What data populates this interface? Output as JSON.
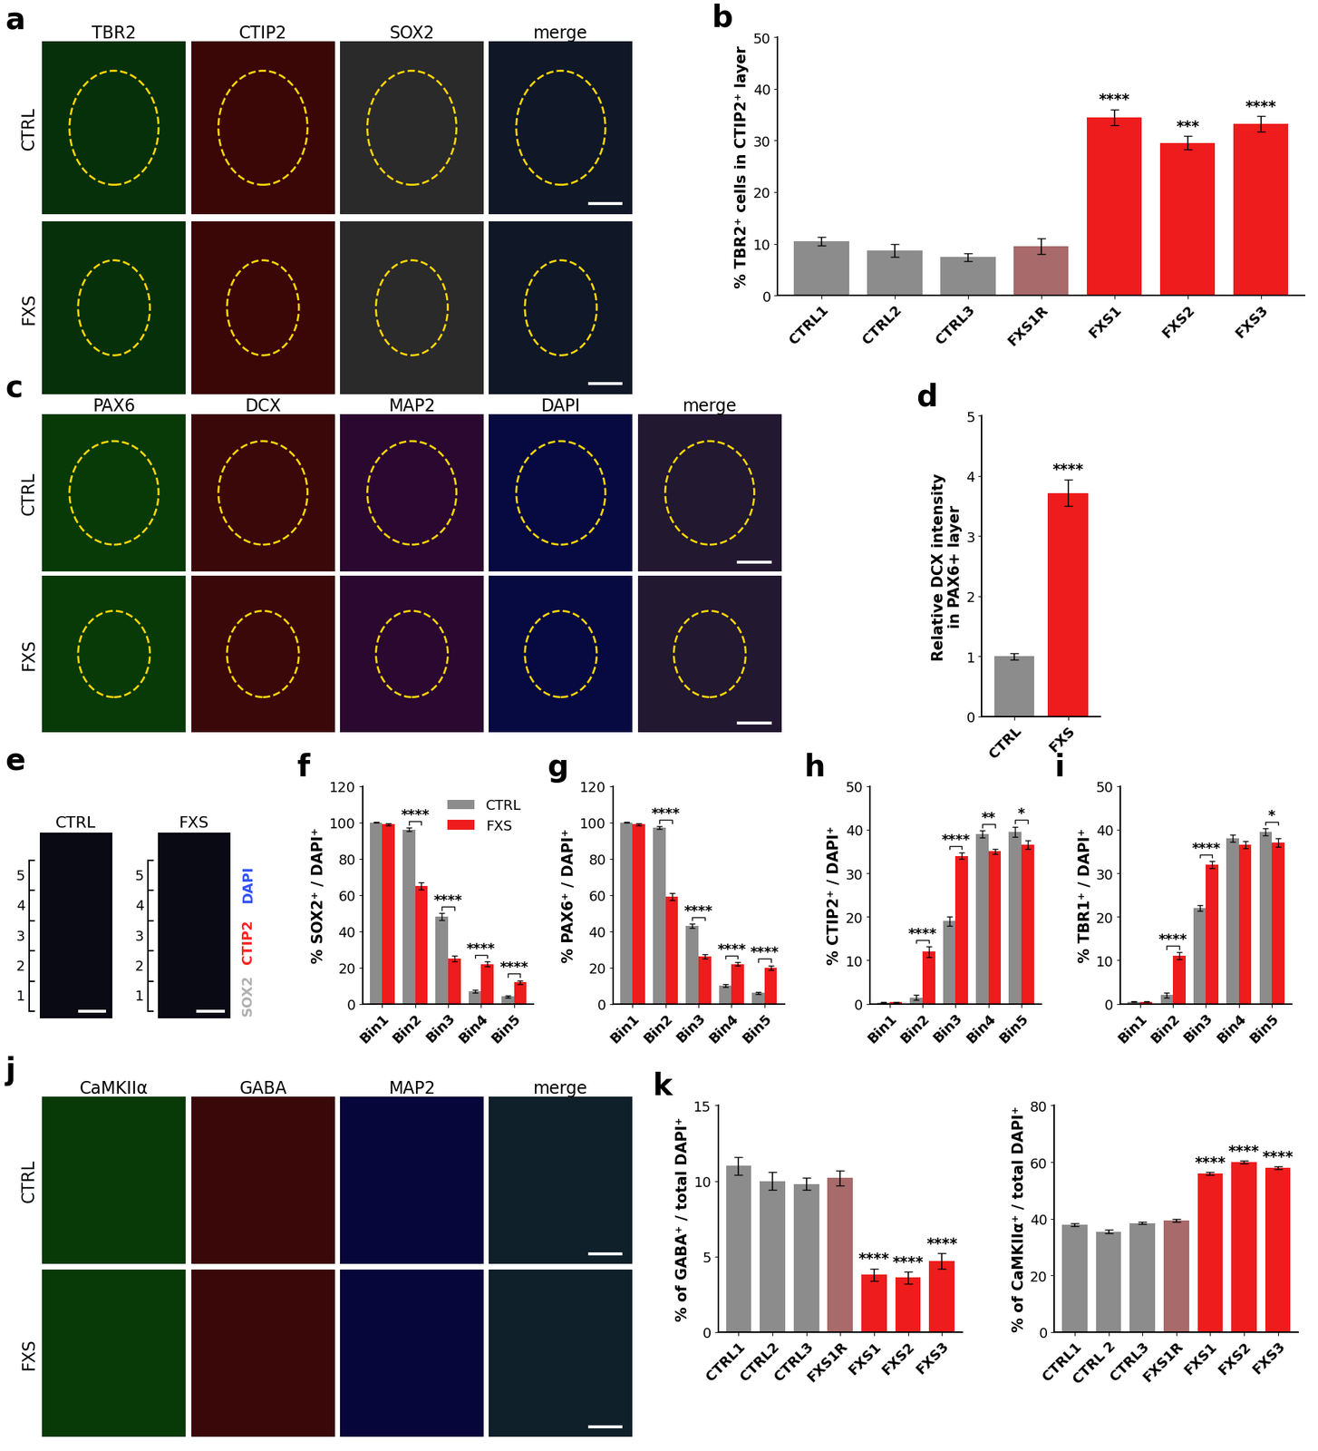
{
  "image_panels": [
    {
      "panel": "a",
      "columns": [
        "TBR2",
        "CTIP2",
        "SOX2",
        "merge"
      ],
      "rows": [
        "CTRL",
        "FXS"
      ]
    },
    {
      "panel": "c",
      "columns": [
        "PAX6",
        "DCX",
        "MAP2",
        "DAPI",
        "merge"
      ],
      "rows": [
        "CTRL",
        "FXS"
      ]
    },
    {
      "panel": "e",
      "columns": [
        "CTRL",
        "FXS"
      ],
      "bins": [
        1,
        2,
        3,
        4,
        5
      ],
      "channels": [
        {
          "name": "SOX2",
          "color": "#b0b0b0"
        },
        {
          "name": "CTIP2",
          "color": "#ff2020"
        },
        {
          "name": "DAPI",
          "color": "#3050ff"
        }
      ]
    },
    {
      "panel": "j",
      "columns": [
        "CaMKIIα",
        "GABA",
        "MAP2",
        "merge"
      ],
      "rows": [
        "CTRL",
        "FXS"
      ]
    }
  ],
  "chart_data": [
    {
      "panel": "b",
      "type": "bar",
      "y_label": "% TBR2⁺ cells in CTIP2⁺ layer",
      "categories": [
        "CTRL1",
        "CTRL2",
        "CTRL3",
        "FXS1R",
        "FXS1",
        "FXS2",
        "FXS3"
      ],
      "values": [
        10.5,
        8.7,
        7.4,
        9.5,
        34.5,
        29.5,
        33.2
      ],
      "errors": [
        0.8,
        1.2,
        0.8,
        1.5,
        1.5,
        1.3,
        1.5
      ],
      "colors": [
        "#8c8c8c",
        "#8c8c8c",
        "#8c8c8c",
        "#a86a6a",
        "#ee1c1c",
        "#ee1c1c",
        "#ee1c1c"
      ],
      "significance": [
        "",
        "",
        "",
        "",
        "****",
        "***",
        "****"
      ],
      "ylim": [
        0,
        50
      ],
      "yticks": [
        0,
        10,
        20,
        30,
        40,
        50
      ]
    },
    {
      "panel": "d",
      "type": "bar",
      "y_label": "Relative DCX intensity\nin PAX6+ layer",
      "categories": [
        "CTRL",
        "FXS"
      ],
      "values": [
        1.0,
        3.72
      ],
      "errors": [
        0.05,
        0.22
      ],
      "colors": [
        "#8c8c8c",
        "#ee1c1c"
      ],
      "significance": [
        "",
        "****"
      ],
      "ylim": [
        0,
        5
      ],
      "yticks": [
        0,
        1,
        2,
        3,
        4,
        5
      ]
    },
    {
      "panel": "f",
      "type": "grouped_bar",
      "y_label": "% SOX2⁺ / DAPI⁺",
      "categories": [
        "Bin1",
        "Bin2",
        "Bin3",
        "Bin4",
        "Bin5"
      ],
      "series": [
        {
          "name": "CTRL",
          "color": "#8c8c8c",
          "values": [
            100,
            96,
            48,
            7,
            4
          ],
          "errors": [
            0.3,
            1.0,
            2.0,
            0.8,
            0.6
          ]
        },
        {
          "name": "FXS",
          "color": "#ee1c1c",
          "values": [
            99,
            65,
            25,
            22,
            12
          ],
          "errors": [
            0.5,
            2.0,
            1.5,
            1.5,
            1.0
          ]
        }
      ],
      "significance": [
        "",
        "****",
        "****",
        "****",
        "****"
      ],
      "legend": "upper right",
      "ylim": [
        0,
        120
      ],
      "yticks": [
        0,
        20,
        40,
        60,
        80,
        100,
        120
      ]
    },
    {
      "panel": "g",
      "type": "grouped_bar",
      "y_label": "% PAX6⁺ / DAPI⁺",
      "categories": [
        "Bin1",
        "Bin2",
        "Bin3",
        "Bin4",
        "Bin5"
      ],
      "series": [
        {
          "name": "CTRL",
          "color": "#8c8c8c",
          "values": [
            100,
            97,
            43,
            10,
            6
          ],
          "errors": [
            0.3,
            0.8,
            1.2,
            0.8,
            0.6
          ]
        },
        {
          "name": "FXS",
          "color": "#ee1c1c",
          "values": [
            99,
            59,
            26,
            22,
            20
          ],
          "errors": [
            0.5,
            2.0,
            1.2,
            1.0,
            1.2
          ]
        }
      ],
      "significance": [
        "",
        "****",
        "****",
        "****",
        "****"
      ],
      "ylim": [
        0,
        120
      ],
      "yticks": [
        0,
        20,
        40,
        60,
        80,
        100,
        120
      ]
    },
    {
      "panel": "h",
      "type": "grouped_bar",
      "y_label": "% CTIP2⁺ / DAPI⁺",
      "categories": [
        "Bin1",
        "Bin2",
        "Bin3",
        "Bin4",
        "Bin5"
      ],
      "series": [
        {
          "name": "CTRL",
          "color": "#8c8c8c",
          "values": [
            0.3,
            1.5,
            19,
            39,
            39.5
          ],
          "errors": [
            0.1,
            0.5,
            1.0,
            0.8,
            1.2
          ]
        },
        {
          "name": "FXS",
          "color": "#ee1c1c",
          "values": [
            0.4,
            12,
            34,
            35,
            36.5
          ],
          "errors": [
            0.1,
            1.2,
            0.8,
            0.6,
            1.0
          ]
        }
      ],
      "significance": [
        "",
        "****",
        "****",
        "**",
        "*"
      ],
      "ylim": [
        0,
        50
      ],
      "yticks": [
        0,
        10,
        20,
        30,
        40,
        50
      ]
    },
    {
      "panel": "i",
      "type": "grouped_bar",
      "y_label": "% TBR1⁺ / DAPI⁺",
      "categories": [
        "Bin1",
        "Bin2",
        "Bin3",
        "Bin4",
        "Bin5"
      ],
      "series": [
        {
          "name": "CTRL",
          "color": "#8c8c8c",
          "values": [
            0.5,
            2,
            22,
            38,
            39.5
          ],
          "errors": [
            0.1,
            0.6,
            0.6,
            0.8,
            0.8
          ]
        },
        {
          "name": "FXS",
          "color": "#ee1c1c",
          "values": [
            0.5,
            11,
            32,
            36.5,
            37
          ],
          "errors": [
            0.1,
            0.8,
            0.8,
            0.8,
            1.0
          ]
        }
      ],
      "significance": [
        "",
        "****",
        "****",
        "",
        "*"
      ],
      "ylim": [
        0,
        50
      ],
      "yticks": [
        0,
        10,
        20,
        30,
        40,
        50
      ]
    },
    {
      "panel": "k",
      "type": "bar",
      "y_label": "% of GABA⁺ / total DAPI⁺",
      "categories": [
        "CTRL1",
        "CTRL2",
        "CTRL3",
        "FXS1R",
        "FXS1",
        "FXS2",
        "FXS3"
      ],
      "values": [
        11.0,
        10.0,
        9.8,
        10.2,
        3.8,
        3.6,
        4.7
      ],
      "errors": [
        0.6,
        0.6,
        0.4,
        0.5,
        0.4,
        0.4,
        0.5
      ],
      "colors": [
        "#8c8c8c",
        "#8c8c8c",
        "#8c8c8c",
        "#a86a6a",
        "#ee1c1c",
        "#ee1c1c",
        "#ee1c1c"
      ],
      "significance": [
        "",
        "",
        "",
        "",
        "****",
        "****",
        "****"
      ],
      "ylim": [
        0,
        15
      ],
      "yticks": [
        0,
        5,
        10,
        15
      ]
    },
    {
      "type": "bar",
      "y_label": "% of CaMKIIα⁺ / total DAPI⁺",
      "categories": [
        "CTRL1",
        "CTRL 2",
        "CTRL3",
        "FXS1R",
        "FXS1",
        "FXS2",
        "FXS3"
      ],
      "values": [
        38.0,
        35.5,
        38.5,
        39.5,
        56.0,
        60.0,
        58.0
      ],
      "errors": [
        0.5,
        0.6,
        0.4,
        0.5,
        0.5,
        0.4,
        0.4
      ],
      "colors": [
        "#8c8c8c",
        "#8c8c8c",
        "#8c8c8c",
        "#a86a6a",
        "#ee1c1c",
        "#ee1c1c",
        "#ee1c1c"
      ],
      "significance": [
        "",
        "",
        "",
        "",
        "****",
        "****",
        "****"
      ],
      "ylim": [
        0,
        80
      ],
      "yticks": [
        0,
        20,
        40,
        60,
        80
      ]
    }
  ]
}
